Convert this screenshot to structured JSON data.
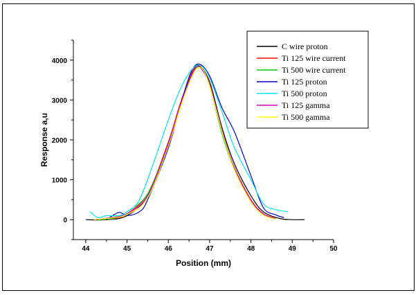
{
  "chart_data": {
    "type": "line",
    "title": "",
    "xlabel": "Position (mm)",
    "ylabel": "Response a,u",
    "xlim": [
      43.7,
      50
    ],
    "ylim": [
      -500,
      4500
    ],
    "xticks": [
      44,
      45,
      46,
      47,
      48,
      49,
      50
    ],
    "yticks": [
      0,
      1000,
      2000,
      3000,
      4000
    ],
    "grid": false,
    "legend_position": "top-right",
    "series": [
      {
        "name": "C wire proton",
        "color": "#000000",
        "x": [
          44.0,
          44.5,
          45.0,
          45.5,
          46.0,
          46.3,
          46.6,
          46.75,
          47.0,
          47.3,
          47.6,
          48.0,
          48.3,
          48.7,
          49.0,
          49.3
        ],
        "y": [
          0,
          0,
          100,
          600,
          1900,
          2900,
          3700,
          3850,
          3450,
          2300,
          1400,
          600,
          200,
          30,
          0,
          0
        ]
      },
      {
        "name": "Ti 125 wire current",
        "color": "#ff0000",
        "x": [
          44.3,
          44.7,
          45.0,
          45.5,
          46.0,
          46.3,
          46.6,
          46.75,
          47.0,
          47.3,
          47.6,
          48.0,
          48.3,
          48.6
        ],
        "y": [
          0,
          30,
          150,
          650,
          1950,
          2950,
          3750,
          3860,
          3400,
          2200,
          1300,
          500,
          150,
          30
        ]
      },
      {
        "name": "Ti 500 wire current",
        "color": "#00cc00",
        "x": [
          44.3,
          44.7,
          45.0,
          45.5,
          46.0,
          46.3,
          46.6,
          46.8,
          47.0,
          47.3,
          47.6,
          48.0,
          48.3,
          48.6
        ],
        "y": [
          0,
          40,
          200,
          650,
          1900,
          2900,
          3700,
          3800,
          3350,
          2150,
          1250,
          450,
          120,
          20
        ]
      },
      {
        "name": "Ti 125 proton",
        "color": "#0000cc",
        "x": [
          44.5,
          44.8,
          45.0,
          45.3,
          45.5,
          46.0,
          46.3,
          46.55,
          46.75,
          47.0,
          47.3,
          47.6,
          48.0,
          48.3,
          48.6,
          48.8
        ],
        "y": [
          0,
          180,
          100,
          200,
          500,
          1800,
          2900,
          3700,
          3900,
          3600,
          2800,
          2200,
          1100,
          300,
          120,
          50
        ]
      },
      {
        "name": "Ti 500 proton",
        "color": "#00e5e5",
        "x": [
          44.1,
          44.3,
          44.5,
          44.8,
          45.0,
          45.3,
          45.7,
          46.0,
          46.3,
          46.6,
          46.8,
          47.0,
          47.3,
          47.6,
          48.0,
          48.3,
          48.6,
          48.9
        ],
        "y": [
          200,
          50,
          100,
          100,
          200,
          500,
          1600,
          2500,
          3300,
          3800,
          3850,
          3550,
          2700,
          1800,
          1000,
          400,
          250,
          200
        ]
      },
      {
        "name": "Ti 125 gamma",
        "color": "#cc00cc",
        "x": [
          44.2,
          44.6,
          45.0,
          45.5,
          46.0,
          46.3,
          46.6,
          46.75,
          47.0,
          47.3,
          47.6,
          48.0,
          48.3,
          48.6
        ],
        "y": [
          0,
          50,
          150,
          600,
          1900,
          2900,
          3700,
          3830,
          3380,
          2250,
          1280,
          480,
          140,
          20
        ]
      },
      {
        "name": "Ti 500 gamma",
        "color": "#ffff00",
        "x": [
          44.2,
          44.6,
          45.0,
          45.5,
          46.0,
          46.3,
          46.6,
          46.8,
          47.0,
          47.3,
          47.6,
          48.0,
          48.3,
          48.6
        ],
        "y": [
          0,
          40,
          130,
          550,
          1850,
          2850,
          3650,
          3800,
          3350,
          2200,
          1250,
          450,
          120,
          10
        ]
      }
    ]
  }
}
